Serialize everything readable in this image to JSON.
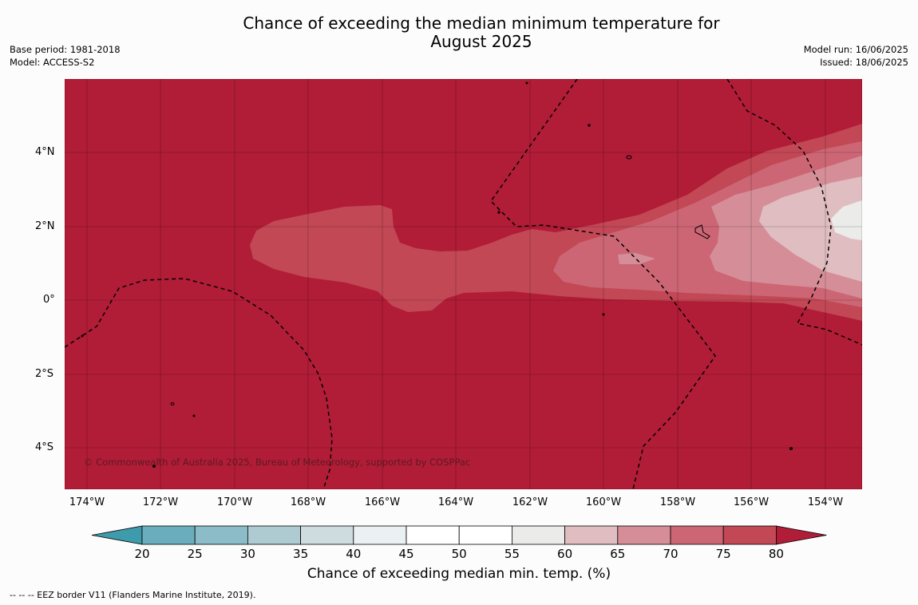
{
  "header": {
    "title_line1": "Chance of exceeding the median minimum temperature for",
    "title_line2": "August 2025",
    "base_period": "Base period: 1981-2018",
    "model": "Model: ACCESS-S2",
    "model_run": "Model run: 16/06/2025",
    "issued": "Issued: 18/06/2025"
  },
  "map": {
    "lat_labels": [
      "4°N",
      "2°N",
      "0°",
      "2°S",
      "4°S"
    ],
    "lon_labels": [
      "174°W",
      "172°W",
      "170°W",
      "168°W",
      "166°W",
      "164°W",
      "162°W",
      "160°W",
      "158°W",
      "156°W",
      "154°W"
    ],
    "lon_range": [
      -174.6,
      -153.0
    ],
    "lat_range": [
      -5.1,
      5.9
    ],
    "copyright": "© Commonwealth of Australia 2025, Bureau of Meteorology, supported by COSPPac",
    "background_color": "#b11c37",
    "band_colors": {
      "75-80": "#c24856",
      "70-75": "#cc6674",
      "65-70": "#d58e98",
      "60-65": "#e0bdc1",
      "55-60": "#ebebea"
    }
  },
  "colorbar": {
    "tick_labels": [
      "20",
      "25",
      "30",
      "35",
      "40",
      "45",
      "50",
      "55",
      "60",
      "65",
      "70",
      "75",
      "80"
    ],
    "colors": [
      "#3d9bab",
      "#6aaebd",
      "#8bbcc7",
      "#aecbd1",
      "#cfdcdf",
      "#ebf1f2",
      "#ffffff",
      "#ffffff",
      "#ebebea",
      "#e0bdc1",
      "#d58e98",
      "#cc6674",
      "#c24856",
      "#b11c37"
    ],
    "title": "Chance of exceeding median min. temp. (%)"
  },
  "footnote": "--  --  -- EEZ border V11 (Flanders Marine Institute, 2019)."
}
